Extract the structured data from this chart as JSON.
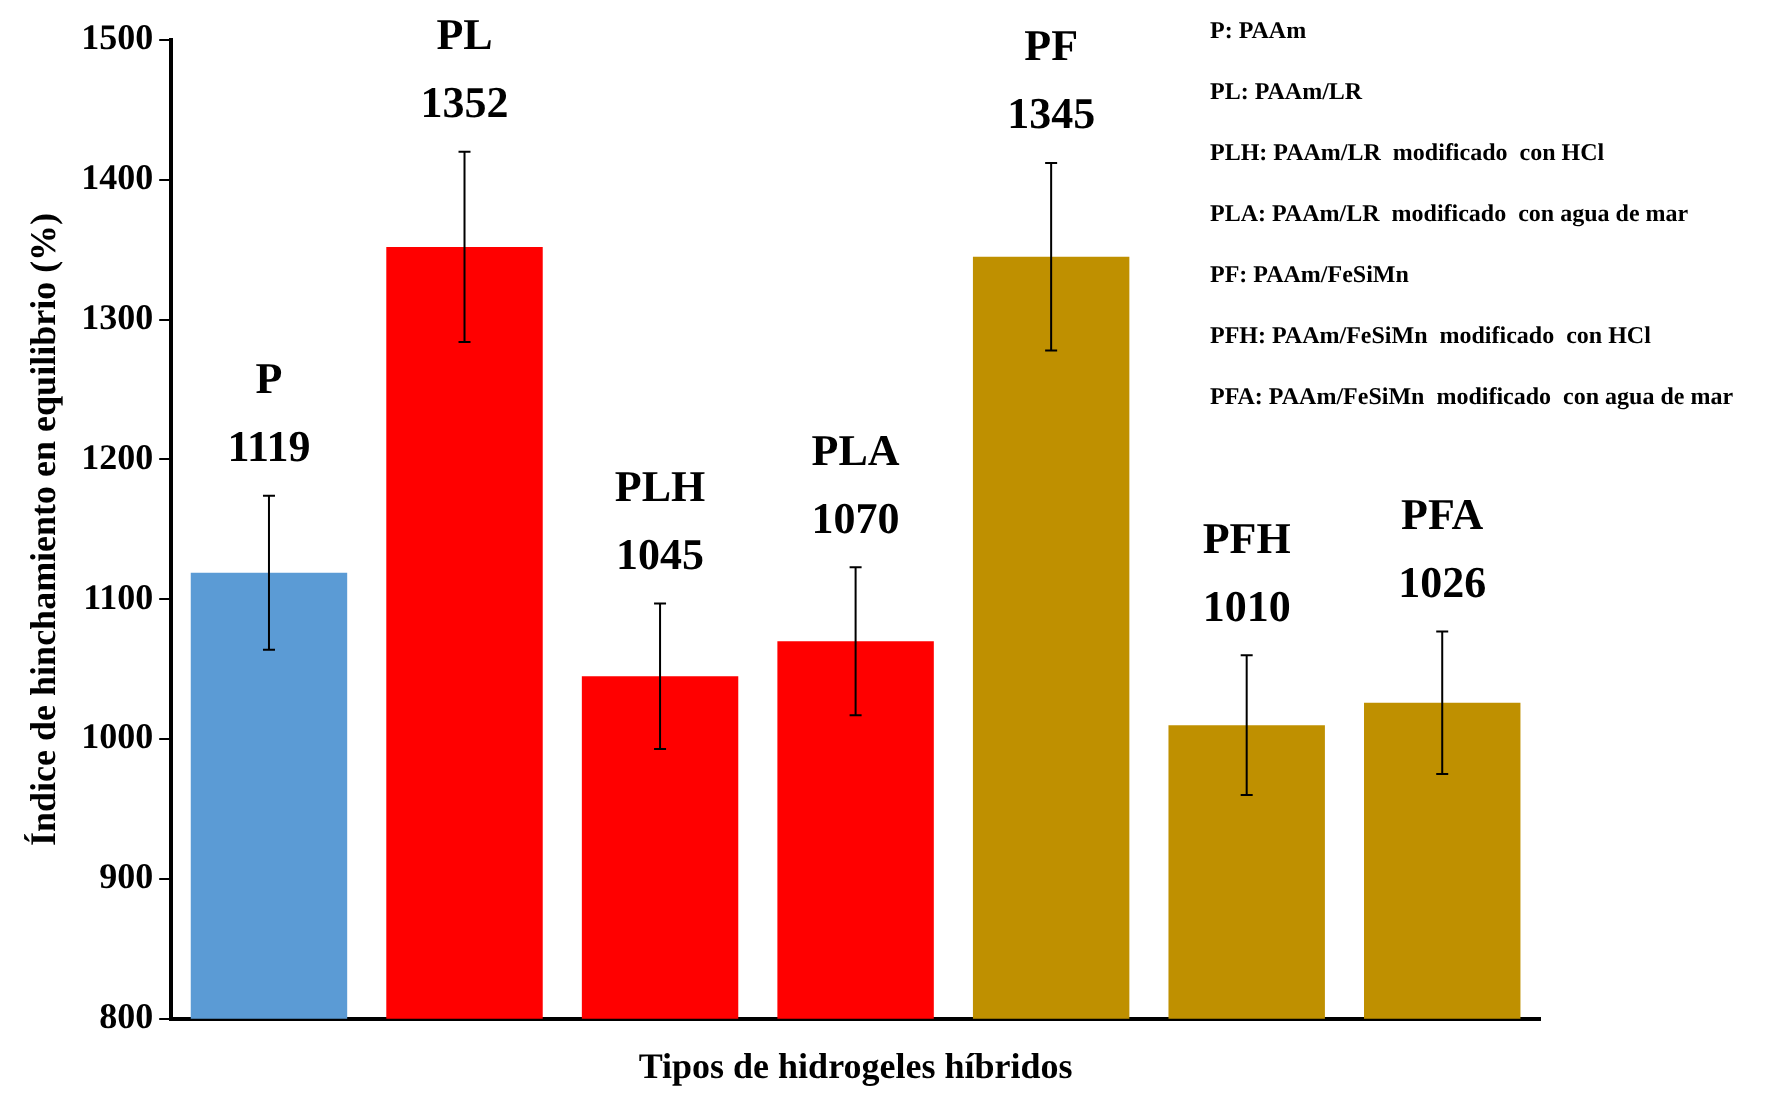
{
  "chart_data": {
    "type": "bar",
    "xlabel": "Tipos de hidrogeles híbridos",
    "ylabel": "Índice de hinchamiento en equilibrio (%)",
    "categories": [
      "P",
      "PL",
      "PLH",
      "PLA",
      "PF",
      "PFH",
      "PFA"
    ],
    "values": [
      1119,
      1352,
      1045,
      1070,
      1345,
      1010,
      1026
    ],
    "colors": [
      "#5b9bd5",
      "#ff0000",
      "#ff0000",
      "#ff0000",
      "#bf9000",
      "#bf9000",
      "#bf9000"
    ],
    "errors": [
      55,
      68,
      52,
      53,
      67,
      50,
      51
    ],
    "data_labels": true,
    "ylim": [
      800,
      1500
    ],
    "yticks": [
      800,
      900,
      1000,
      1100,
      1200,
      1300,
      1400,
      1500
    ],
    "grid": false,
    "legend": false,
    "tick_labels": "y",
    "annotations": [
      "P: PAAm",
      "PL: PAAm/LR",
      "PLH: PAAm/LR  modificado  con HCl",
      "PLA: PAAm/LR  modificado  con agua de mar",
      "PF: PAAm/FeSiMn",
      "PFH: PAAm/FeSiMn  modificado  con HCl",
      "PFA: PAAm/FeSiMn  modificado  con agua de mar"
    ]
  }
}
